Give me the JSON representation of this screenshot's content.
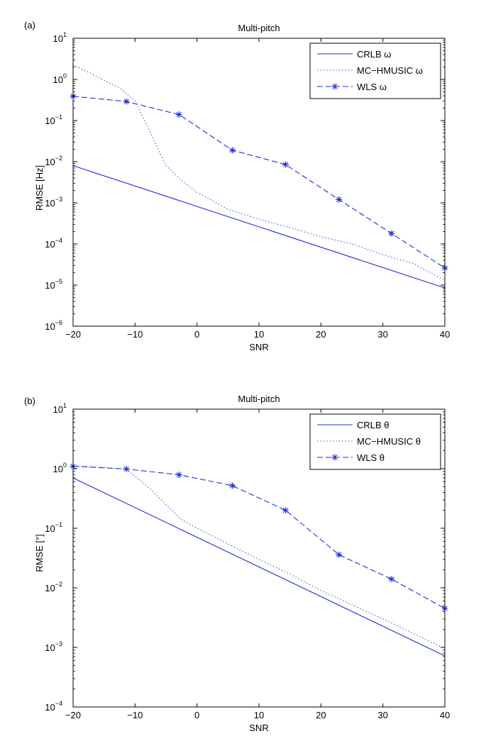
{
  "colors": {
    "series": "#1f2fd0",
    "axis": "#000000",
    "background": "#ffffff"
  },
  "chart_data": [
    {
      "type": "line",
      "panel_label": "(a)",
      "title": "Multi-pitch",
      "xlabel": "SNR",
      "ylabel": "RMSE [Hz]",
      "yscale": "log",
      "xlim": [
        -20,
        40
      ],
      "ylim_exp": [
        -6,
        1
      ],
      "xticks": [
        -20,
        -10,
        0,
        10,
        20,
        30,
        40
      ],
      "yticks_exp": [
        -6,
        -5,
        -4,
        -3,
        -2,
        -1,
        0,
        1
      ],
      "legend_position": "top-right",
      "series": [
        {
          "name": "CRLB ω",
          "style": "solid",
          "marker": "none",
          "x": [
            -20,
            40
          ],
          "y": [
            0.008,
            8.5e-06
          ]
        },
        {
          "name": "MC−HMUSIC ω",
          "style": "dotted",
          "marker": "none",
          "x": [
            -20,
            -17.5,
            -15,
            -12.5,
            -10,
            -7.5,
            -5,
            -2.5,
            0,
            5,
            10,
            15,
            20,
            25,
            30,
            35,
            40
          ],
          "y": [
            2.2,
            1.5,
            0.95,
            0.62,
            0.3,
            0.05,
            0.008,
            0.0035,
            0.0018,
            0.0007,
            0.0004,
            0.00025,
            0.00015,
            0.0001,
            5.5e-05,
            3.3e-05,
            1.3e-05
          ]
        },
        {
          "name": "WLS ω",
          "style": "dashed",
          "marker": "asterisk",
          "x": [
            -20,
            -11.4,
            -2.9,
            5.7,
            14.3,
            22.9,
            31.4,
            40
          ],
          "y": [
            0.39,
            0.29,
            0.14,
            0.019,
            0.0085,
            0.0012,
            0.00018,
            2.6e-05
          ]
        }
      ]
    },
    {
      "type": "line",
      "panel_label": "(b)",
      "title": "Multi-pitch",
      "xlabel": "SNR",
      "ylabel": "RMSE [°]",
      "yscale": "log",
      "xlim": [
        -20,
        40
      ],
      "ylim_exp": [
        -4,
        1
      ],
      "xticks": [
        -20,
        -10,
        0,
        10,
        20,
        30,
        40
      ],
      "yticks_exp": [
        -4,
        -3,
        -2,
        -1,
        0,
        1
      ],
      "legend_position": "top-right",
      "series": [
        {
          "name": "CRLB θ",
          "style": "solid",
          "marker": "none",
          "x": [
            -20,
            40
          ],
          "y": [
            0.7,
            0.00072
          ]
        },
        {
          "name": "MC−HMUSIC θ",
          "style": "dotted",
          "marker": "none",
          "x": [
            -20,
            -15,
            -11.4,
            -7.5,
            -5,
            -2.5,
            0,
            5,
            10,
            15,
            20,
            25,
            30,
            35,
            40
          ],
          "y": [
            1.12,
            1.05,
            0.98,
            0.45,
            0.25,
            0.14,
            0.1,
            0.055,
            0.03,
            0.017,
            0.009,
            0.0052,
            0.003,
            0.0017,
            0.00095
          ]
        },
        {
          "name": "WLS θ",
          "style": "dashed",
          "marker": "asterisk",
          "x": [
            -20,
            -11.4,
            -2.9,
            5.7,
            14.3,
            22.9,
            31.4,
            40
          ],
          "y": [
            1.1,
            0.99,
            0.79,
            0.52,
            0.2,
            0.036,
            0.014,
            0.0045
          ]
        }
      ]
    }
  ]
}
